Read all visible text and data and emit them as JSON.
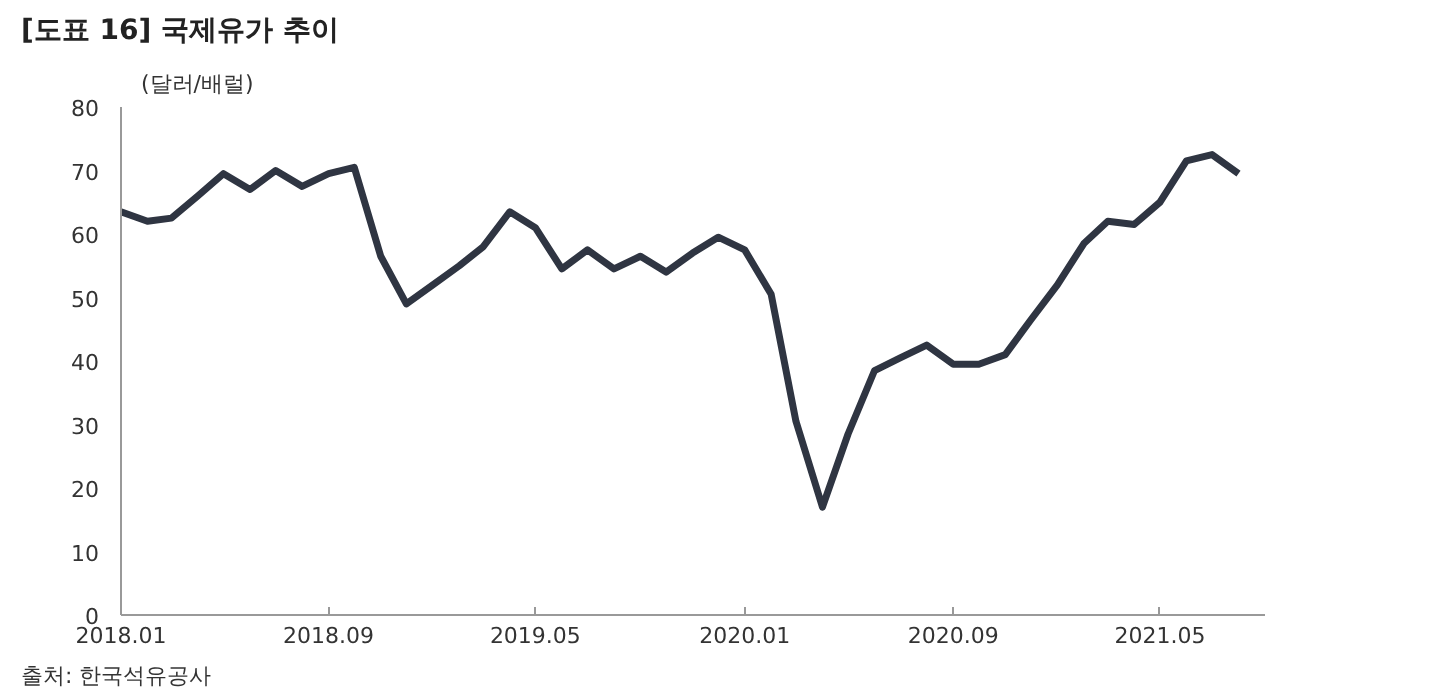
{
  "chart_data": {
    "type": "line",
    "title": "[도표 16] 국제유가 추이",
    "ylabel": "(달러/배럴)",
    "x": [
      "2018-01",
      "2018-02",
      "2018-03",
      "2018-04",
      "2018-05",
      "2018-06",
      "2018-07",
      "2018-08",
      "2018-09",
      "2018-10",
      "2018-11",
      "2018-12",
      "2019-01",
      "2019-02",
      "2019-03",
      "2019-04",
      "2019-05",
      "2019-06",
      "2019-07",
      "2019-08",
      "2019-09",
      "2019-10",
      "2019-11",
      "2019-12",
      "2020-01",
      "2020-02",
      "2020-03",
      "2020-04",
      "2020-05",
      "2020-06",
      "2020-07",
      "2020-08",
      "2020-09",
      "2020-10",
      "2020-11",
      "2020-12",
      "2021-01",
      "2021-02",
      "2021-03",
      "2021-04",
      "2021-05",
      "2021-06",
      "2021-07",
      "2021-08"
    ],
    "series": [
      {
        "color": "#2f3542",
        "values": [
          63.5,
          62,
          62.5,
          66,
          69.5,
          67,
          70,
          67.5,
          69.5,
          70.5,
          56.5,
          49,
          52,
          55,
          58,
          63.5,
          61,
          54.5,
          57.5,
          54.5,
          56.5,
          54,
          57,
          59.5,
          57.5,
          50.5,
          30.5,
          17,
          28.5,
          38.5,
          40.5,
          42.5,
          39.5,
          39.5,
          41,
          46.5,
          52,
          58.5,
          62,
          61.5,
          65,
          71.5,
          72.5,
          69.5
        ]
      }
    ],
    "xlim": [
      "2018-01",
      "2021-09"
    ],
    "ylim": [
      0,
      80
    ],
    "yticks": [
      0,
      10,
      20,
      30,
      40,
      50,
      60,
      70,
      80
    ],
    "xticks": [
      {
        "value": "2018-01",
        "label": "2018.01"
      },
      {
        "value": "2018-09",
        "label": "2018.09"
      },
      {
        "value": "2019-05",
        "label": "2019.05"
      },
      {
        "value": "2020-01",
        "label": "2020.01"
      },
      {
        "value": "2020-09",
        "label": "2020.09"
      },
      {
        "value": "2021-05",
        "label": "2021.05"
      }
    ],
    "grid": false,
    "annotations": [
      "출처: 한국석유공사"
    ]
  }
}
